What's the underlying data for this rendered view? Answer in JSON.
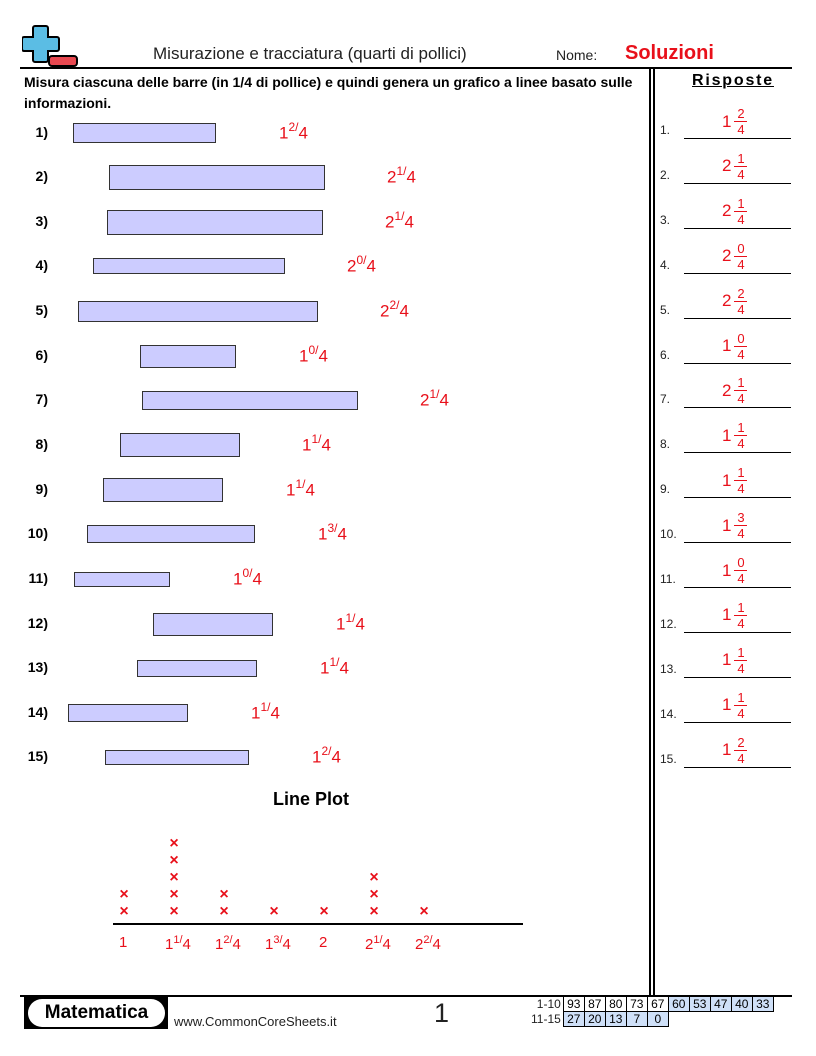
{
  "header": {
    "title": "Misurazione e tracciatura (quarti di pollici)",
    "name_label": "Nome:",
    "name_value": "Soluzioni",
    "logo_icon": "plus-minus-logo-icon"
  },
  "instructions": "Misura ciascuna delle barre (in 1/4 di pollice) e quindi genera un grafico a linee basato sulle informazioni.",
  "problems": [
    {
      "num": "1)",
      "whole": "1",
      "num_frac": "2",
      "den": "4"
    },
    {
      "num": "2)",
      "whole": "2",
      "num_frac": "1",
      "den": "4"
    },
    {
      "num": "3)",
      "whole": "2",
      "num_frac": "1",
      "den": "4"
    },
    {
      "num": "4)",
      "whole": "2",
      "num_frac": "0",
      "den": "4"
    },
    {
      "num": "5)",
      "whole": "2",
      "num_frac": "2",
      "den": "4"
    },
    {
      "num": "6)",
      "whole": "1",
      "num_frac": "0",
      "den": "4"
    },
    {
      "num": "7)",
      "whole": "2",
      "num_frac": "1",
      "den": "4"
    },
    {
      "num": "8)",
      "whole": "1",
      "num_frac": "1",
      "den": "4"
    },
    {
      "num": "9)",
      "whole": "1",
      "num_frac": "1",
      "den": "4"
    },
    {
      "num": "10)",
      "whole": "1",
      "num_frac": "3",
      "den": "4"
    },
    {
      "num": "11)",
      "whole": "1",
      "num_frac": "0",
      "den": "4"
    },
    {
      "num": "12)",
      "whole": "1",
      "num_frac": "1",
      "den": "4"
    },
    {
      "num": "13)",
      "whole": "1",
      "num_frac": "1",
      "den": "4"
    },
    {
      "num": "14)",
      "whole": "1",
      "num_frac": "1",
      "den": "4"
    },
    {
      "num": "15)",
      "whole": "1",
      "num_frac": "2",
      "den": "4"
    }
  ],
  "answers": {
    "title": "Risposte",
    "items": [
      {
        "num": "1.",
        "whole": "1",
        "n": "2",
        "d": "4"
      },
      {
        "num": "2.",
        "whole": "2",
        "n": "1",
        "d": "4"
      },
      {
        "num": "3.",
        "whole": "2",
        "n": "1",
        "d": "4"
      },
      {
        "num": "4.",
        "whole": "2",
        "n": "0",
        "d": "4"
      },
      {
        "num": "5.",
        "whole": "2",
        "n": "2",
        "d": "4"
      },
      {
        "num": "6.",
        "whole": "1",
        "n": "0",
        "d": "4"
      },
      {
        "num": "7.",
        "whole": "2",
        "n": "1",
        "d": "4"
      },
      {
        "num": "8.",
        "whole": "1",
        "n": "1",
        "d": "4"
      },
      {
        "num": "9.",
        "whole": "1",
        "n": "1",
        "d": "4"
      },
      {
        "num": "10.",
        "whole": "1",
        "n": "3",
        "d": "4"
      },
      {
        "num": "11.",
        "whole": "1",
        "n": "0",
        "d": "4"
      },
      {
        "num": "12.",
        "whole": "1",
        "n": "1",
        "d": "4"
      },
      {
        "num": "13.",
        "whole": "1",
        "n": "1",
        "d": "4"
      },
      {
        "num": "14.",
        "whole": "1",
        "n": "1",
        "d": "4"
      },
      {
        "num": "15.",
        "whole": "1",
        "n": "2",
        "d": "4"
      }
    ]
  },
  "line_plot": {
    "title": "Line Plot",
    "mark": "×",
    "ticks": [
      {
        "whole": "1",
        "frac": ""
      },
      {
        "whole": "1",
        "frac": "1/4"
      },
      {
        "whole": "1",
        "frac": "2/4"
      },
      {
        "whole": "1",
        "frac": "3/4"
      },
      {
        "whole": "2",
        "frac": ""
      },
      {
        "whole": "2",
        "frac": "1/4"
      },
      {
        "whole": "2",
        "frac": "2/4"
      }
    ],
    "counts": [
      2,
      5,
      2,
      1,
      1,
      3,
      1
    ]
  },
  "footer": {
    "brand": "Matematica",
    "site": "www.CommonCoreSheets.it",
    "page": "1",
    "score_rows": [
      {
        "label": "1-10",
        "values": [
          "93",
          "87",
          "80",
          "73",
          "67",
          "60",
          "53",
          "47",
          "40",
          "33"
        ]
      },
      {
        "label": "11-15",
        "values": [
          "27",
          "20",
          "13",
          "7",
          "0"
        ]
      }
    ]
  },
  "colors": {
    "answer_red": "#e8101a",
    "bar_fill": "#ccccff",
    "logo_blue": "#5bbde4",
    "logo_red": "#e84850",
    "score_blue": "#cfe0f8"
  }
}
